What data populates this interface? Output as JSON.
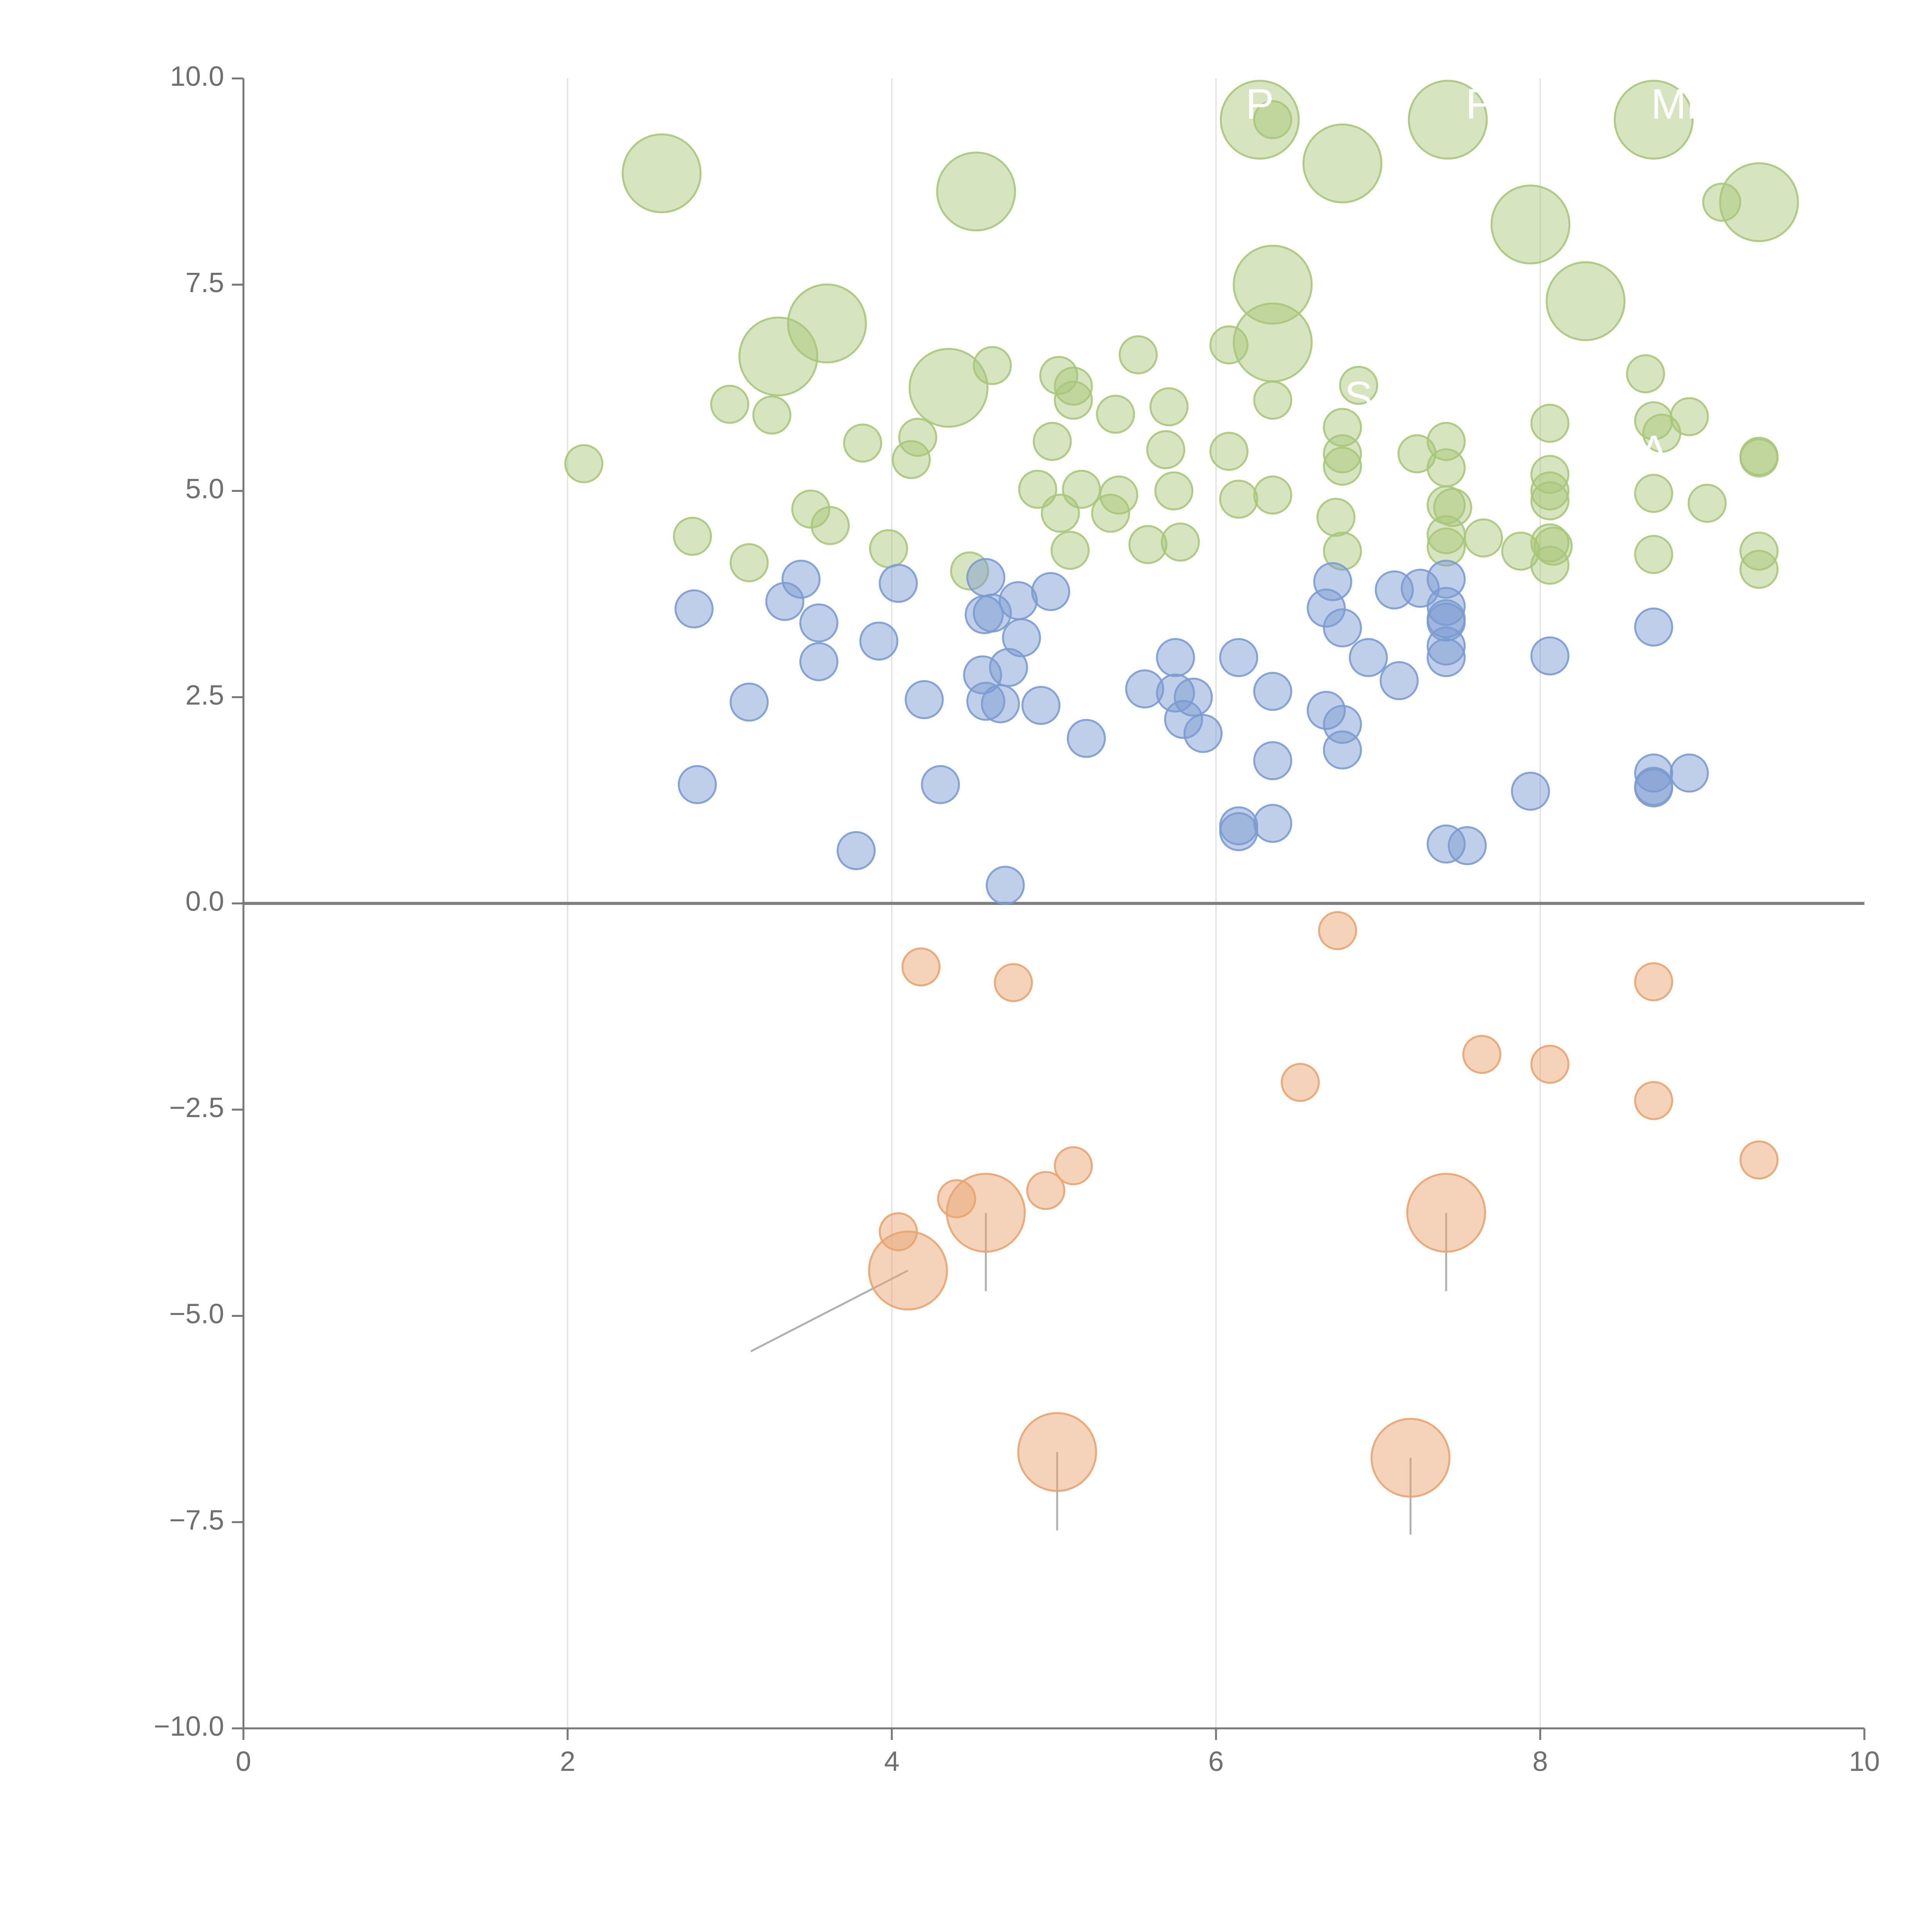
{
  "chart_data": {
    "type": "scatter",
    "title": "",
    "xlabel": "",
    "ylabel": "",
    "xlim": [
      0,
      10
    ],
    "ylim": [
      -10,
      10
    ],
    "x_ticks": [
      0,
      2,
      4,
      6,
      8,
      10
    ],
    "x_tick_labels": [
      "0",
      "2",
      "4",
      "6",
      "8",
      "10"
    ],
    "y_ticks": [
      -10,
      -7.5,
      -5,
      -2.5,
      0,
      2.5,
      5,
      7.5,
      10
    ],
    "y_tick_labels": [
      "−10.0",
      "−7.5",
      "−5.0",
      "−2.5",
      "0.0",
      "2.5",
      "5.0",
      "7.5",
      "10.0"
    ],
    "vertical_gridlines_at": [
      2,
      4,
      6,
      8
    ],
    "zero_line": 0,
    "colors": {
      "green": "#a9c77a",
      "blue": "#7b9bd0",
      "orange": "#e8a46f",
      "grid": "#dddddd",
      "axis": "#777777",
      "zero_line": "#7f7f7f",
      "leader": "#b0b0b0"
    },
    "bubble_sizes": {
      "small": 1,
      "large": 2.1
    },
    "series": [
      {
        "name": "green",
        "color": "#a9c77a",
        "points": [
          {
            "x": 2.58,
            "y": 8.85,
            "s": "large"
          },
          {
            "x": 4.52,
            "y": 8.63,
            "s": "large"
          },
          {
            "x": 3.6,
            "y": 7.03,
            "s": "large"
          },
          {
            "x": 3.3,
            "y": 6.63,
            "s": "large"
          },
          {
            "x": 4.35,
            "y": 6.25,
            "s": "large"
          },
          {
            "x": 6.27,
            "y": 9.5,
            "s": "large"
          },
          {
            "x": 6.78,
            "y": 8.97,
            "s": "large"
          },
          {
            "x": 7.43,
            "y": 9.5,
            "s": "large"
          },
          {
            "x": 8.7,
            "y": 9.5,
            "s": "large"
          },
          {
            "x": 7.94,
            "y": 8.23,
            "s": "large"
          },
          {
            "x": 9.35,
            "y": 8.5,
            "s": "large"
          },
          {
            "x": 6.35,
            "y": 7.5,
            "s": "large"
          },
          {
            "x": 6.35,
            "y": 6.8,
            "s": "large"
          },
          {
            "x": 8.28,
            "y": 7.3,
            "s": "large"
          },
          {
            "x": 6.35,
            "y": 9.5
          },
          {
            "x": 9.12,
            "y": 8.5
          },
          {
            "x": 2.1,
            "y": 5.33
          },
          {
            "x": 2.77,
            "y": 4.45
          },
          {
            "x": 3.0,
            "y": 6.05
          },
          {
            "x": 3.26,
            "y": 5.92
          },
          {
            "x": 3.12,
            "y": 4.13
          },
          {
            "x": 3.5,
            "y": 4.78
          },
          {
            "x": 3.62,
            "y": 4.58
          },
          {
            "x": 3.82,
            "y": 5.58
          },
          {
            "x": 3.98,
            "y": 4.3
          },
          {
            "x": 4.12,
            "y": 5.38
          },
          {
            "x": 4.16,
            "y": 5.65
          },
          {
            "x": 4.62,
            "y": 6.52
          },
          {
            "x": 4.48,
            "y": 4.03
          },
          {
            "x": 5.03,
            "y": 6.4
          },
          {
            "x": 5.12,
            "y": 6.27
          },
          {
            "x": 5.12,
            "y": 6.1
          },
          {
            "x": 4.99,
            "y": 5.6
          },
          {
            "x": 4.9,
            "y": 5.02
          },
          {
            "x": 5.04,
            "y": 4.73
          },
          {
            "x": 5.17,
            "y": 5.02
          },
          {
            "x": 5.1,
            "y": 4.28
          },
          {
            "x": 5.38,
            "y": 5.93
          },
          {
            "x": 5.4,
            "y": 4.95
          },
          {
            "x": 5.35,
            "y": 4.73
          },
          {
            "x": 5.52,
            "y": 6.65
          },
          {
            "x": 5.71,
            "y": 6.02
          },
          {
            "x": 5.69,
            "y": 5.5
          },
          {
            "x": 5.74,
            "y": 5.0
          },
          {
            "x": 5.58,
            "y": 4.35
          },
          {
            "x": 5.78,
            "y": 4.38
          },
          {
            "x": 6.08,
            "y": 6.77
          },
          {
            "x": 6.08,
            "y": 5.48
          },
          {
            "x": 6.14,
            "y": 4.9
          },
          {
            "x": 6.35,
            "y": 6.1
          },
          {
            "x": 6.35,
            "y": 4.95
          },
          {
            "x": 6.88,
            "y": 6.28
          },
          {
            "x": 6.78,
            "y": 5.77
          },
          {
            "x": 6.78,
            "y": 5.45
          },
          {
            "x": 6.78,
            "y": 5.3
          },
          {
            "x": 6.74,
            "y": 4.68
          },
          {
            "x": 6.78,
            "y": 4.27
          },
          {
            "x": 7.24,
            "y": 5.45
          },
          {
            "x": 7.42,
            "y": 5.6
          },
          {
            "x": 7.42,
            "y": 5.28
          },
          {
            "x": 7.42,
            "y": 4.83
          },
          {
            "x": 7.46,
            "y": 4.8
          },
          {
            "x": 7.42,
            "y": 4.47
          },
          {
            "x": 7.42,
            "y": 4.32
          },
          {
            "x": 7.65,
            "y": 4.43
          },
          {
            "x": 7.88,
            "y": 4.27
          },
          {
            "x": 8.06,
            "y": 5.82
          },
          {
            "x": 8.06,
            "y": 5.2
          },
          {
            "x": 8.06,
            "y": 5.0
          },
          {
            "x": 8.06,
            "y": 4.88
          },
          {
            "x": 8.06,
            "y": 4.37
          },
          {
            "x": 8.08,
            "y": 4.33
          },
          {
            "x": 8.06,
            "y": 4.1
          },
          {
            "x": 8.65,
            "y": 6.42
          },
          {
            "x": 8.7,
            "y": 5.85
          },
          {
            "x": 8.75,
            "y": 5.7
          },
          {
            "x": 8.7,
            "y": 4.97
          },
          {
            "x": 8.7,
            "y": 4.23
          },
          {
            "x": 8.92,
            "y": 5.9
          },
          {
            "x": 9.03,
            "y": 4.85
          },
          {
            "x": 9.35,
            "y": 5.42
          },
          {
            "x": 9.35,
            "y": 5.4
          },
          {
            "x": 9.35,
            "y": 4.27
          },
          {
            "x": 9.35,
            "y": 4.05
          }
        ]
      },
      {
        "name": "blue",
        "color": "#7b9bd0",
        "points": [
          {
            "x": 2.78,
            "y": 3.57
          },
          {
            "x": 2.8,
            "y": 1.44
          },
          {
            "x": 3.12,
            "y": 2.44
          },
          {
            "x": 3.34,
            "y": 3.66
          },
          {
            "x": 3.44,
            "y": 3.93
          },
          {
            "x": 3.55,
            "y": 3.4
          },
          {
            "x": 3.55,
            "y": 2.93
          },
          {
            "x": 3.78,
            "y": 0.64
          },
          {
            "x": 3.92,
            "y": 3.18
          },
          {
            "x": 4.04,
            "y": 3.88
          },
          {
            "x": 4.2,
            "y": 2.47
          },
          {
            "x": 4.3,
            "y": 1.44
          },
          {
            "x": 4.58,
            "y": 3.95
          },
          {
            "x": 4.62,
            "y": 3.52
          },
          {
            "x": 4.57,
            "y": 3.5
          },
          {
            "x": 4.78,
            "y": 3.67
          },
          {
            "x": 4.8,
            "y": 3.22
          },
          {
            "x": 4.72,
            "y": 2.86
          },
          {
            "x": 4.56,
            "y": 2.77
          },
          {
            "x": 4.58,
            "y": 2.45
          },
          {
            "x": 4.67,
            "y": 2.42
          },
          {
            "x": 4.7,
            "y": 0.22
          },
          {
            "x": 4.98,
            "y": 3.78
          },
          {
            "x": 4.92,
            "y": 2.4
          },
          {
            "x": 5.2,
            "y": 2.0
          },
          {
            "x": 5.56,
            "y": 2.6
          },
          {
            "x": 5.75,
            "y": 2.98
          },
          {
            "x": 5.75,
            "y": 2.55
          },
          {
            "x": 5.86,
            "y": 2.5
          },
          {
            "x": 5.8,
            "y": 2.23
          },
          {
            "x": 5.92,
            "y": 2.06
          },
          {
            "x": 6.14,
            "y": 2.98
          },
          {
            "x": 6.14,
            "y": 0.94
          },
          {
            "x": 6.14,
            "y": 0.87
          },
          {
            "x": 6.35,
            "y": 2.57
          },
          {
            "x": 6.35,
            "y": 1.73
          },
          {
            "x": 6.35,
            "y": 0.97
          },
          {
            "x": 6.72,
            "y": 3.9
          },
          {
            "x": 6.68,
            "y": 3.58
          },
          {
            "x": 6.78,
            "y": 3.34
          },
          {
            "x": 6.68,
            "y": 2.34
          },
          {
            "x": 6.78,
            "y": 2.17
          },
          {
            "x": 6.78,
            "y": 1.86
          },
          {
            "x": 6.94,
            "y": 2.98
          },
          {
            "x": 7.1,
            "y": 3.8
          },
          {
            "x": 7.26,
            "y": 3.82
          },
          {
            "x": 7.13,
            "y": 2.7
          },
          {
            "x": 7.42,
            "y": 3.93
          },
          {
            "x": 7.42,
            "y": 3.6
          },
          {
            "x": 7.42,
            "y": 3.45
          },
          {
            "x": 7.42,
            "y": 3.41
          },
          {
            "x": 7.42,
            "y": 3.12
          },
          {
            "x": 7.42,
            "y": 2.98
          },
          {
            "x": 7.42,
            "y": 0.72
          },
          {
            "x": 7.55,
            "y": 0.7
          },
          {
            "x": 7.94,
            "y": 1.36
          },
          {
            "x": 8.06,
            "y": 3.0
          },
          {
            "x": 8.7,
            "y": 3.35
          },
          {
            "x": 8.7,
            "y": 1.58
          },
          {
            "x": 8.7,
            "y": 1.42
          },
          {
            "x": 8.7,
            "y": 1.4
          },
          {
            "x": 8.92,
            "y": 1.58
          }
        ]
      },
      {
        "name": "orange",
        "color": "#e8a46f",
        "points": [
          {
            "x": 4.18,
            "y": -0.77
          },
          {
            "x": 4.75,
            "y": -0.96
          },
          {
            "x": 6.75,
            "y": -0.33
          },
          {
            "x": 8.7,
            "y": -0.95
          },
          {
            "x": 6.52,
            "y": -2.17
          },
          {
            "x": 7.64,
            "y": -1.83
          },
          {
            "x": 8.06,
            "y": -1.95
          },
          {
            "x": 8.7,
            "y": -2.39
          },
          {
            "x": 9.35,
            "y": -3.11
          },
          {
            "x": 5.12,
            "y": -3.18
          },
          {
            "x": 4.95,
            "y": -3.48
          },
          {
            "x": 4.4,
            "y": -3.58
          },
          {
            "x": 4.04,
            "y": -3.98
          },
          {
            "x": 4.58,
            "y": -3.75,
            "s": "large",
            "leader_to": [
              4.58,
              -4.7
            ]
          },
          {
            "x": 7.42,
            "y": -3.75,
            "s": "large",
            "leader_to": [
              7.42,
              -4.7
            ]
          },
          {
            "x": 4.1,
            "y": -4.45,
            "s": "large",
            "leader_to": [
              3.13,
              -5.43
            ]
          },
          {
            "x": 5.02,
            "y": -6.65,
            "s": "large",
            "leader_to": [
              5.02,
              -7.6
            ]
          },
          {
            "x": 7.2,
            "y": -6.72,
            "s": "large",
            "leader_to": [
              7.2,
              -7.65
            ]
          }
        ]
      }
    ],
    "annotations": [
      {
        "text": "P",
        "x": 6.27,
        "y": 9.65
      },
      {
        "text": "F",
        "x": 7.62,
        "y": 9.65
      },
      {
        "text": "MB",
        "x": 8.88,
        "y": 9.65
      },
      {
        "text": "S",
        "x": 6.88,
        "y": 6.1
      },
      {
        "text": "A",
        "x": 8.7,
        "y": 5.45
      }
    ]
  }
}
